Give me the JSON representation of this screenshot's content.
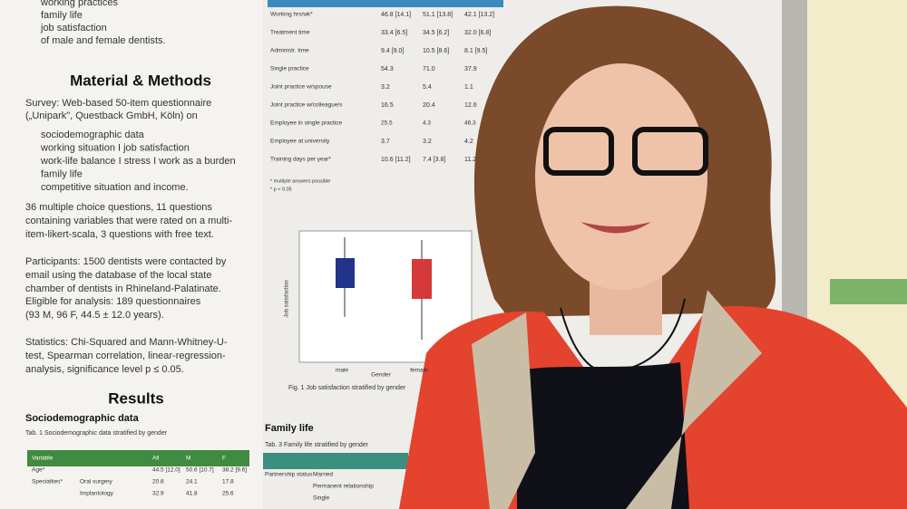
{
  "poster": {
    "intro_lines": [
      "working practices",
      "family life",
      "job satisfaction",
      "of male and female dentists."
    ],
    "methods_title": "Material & Methods",
    "survey_lines": [
      "Survey: Web-based 50-item questionnaire",
      "(„Unipark\", Questback GmbH, Köln) on"
    ],
    "bullets": [
      "sociodemographic data",
      "working situation I job satisfaction",
      "work-life balance I stress I work as a burden",
      "family life",
      "competitive situation and income."
    ],
    "questions_lines": [
      "36 multiple choice questions, 11 questions",
      "containing variables that were rated on a multi-",
      "item-likert-scala, 3 questions with free text."
    ],
    "participants_lines": [
      "Participants: 1500 dentists were contacted by",
      "email using the database of the local state",
      "chamber of dentists in Rhineland-Palatinate."
    ],
    "eligible_lines": [
      "Eligible for analysis: 189 questionnaires",
      "(93 M, 96 F, 44.5 ± 12.0 years)."
    ],
    "statistics_lines": [
      "Statistics: Chi-Squared and Mann-Whitney-U-",
      "test, Spearman correlation, linear-regression-",
      "analysis, significance level p ≤ 0.05."
    ],
    "results_title": "Results",
    "socio_title": "Sociodemographic data",
    "socio_caption": "Tab. 1 Sociodemographic data stratified by gender",
    "socio_rows": [
      [
        "Variable",
        "All",
        "M",
        "F"
      ],
      [
        "Age*",
        "44.5 [12.0]",
        "50.6 [10.7]",
        "38.2 [9.6]"
      ],
      [
        "Specialties*",
        "Oral surgery",
        "20.8",
        "24.1",
        "17.8"
      ],
      [
        "",
        "Implantology",
        "32.9",
        "41.8",
        "25.6"
      ]
    ],
    "work_rows": [
      [
        "Working hrs/wk*",
        "46.8 [14.1]",
        "51.1 [13.8]",
        "42.1 [13.2]"
      ],
      [
        "Treatment time",
        "33.4 [6.5]",
        "34.5 [6.2]",
        "32.0 [6.8]"
      ],
      [
        "Administr. time",
        "9.4 [9.0]",
        "10.5 [8.6]",
        "8.1 [9.5]"
      ],
      [
        "Single practice",
        "54.3",
        "71.0",
        "37.9"
      ],
      [
        "Joint practice w/spouse",
        "3.2",
        "5.4",
        "1.1"
      ],
      [
        "Joint practice w/colleague/s",
        "16.5",
        "20.4",
        "12.6"
      ],
      [
        "Employee in single practice",
        "25.5",
        "4.3",
        "46.3"
      ],
      [
        "Employee at university",
        "3.7",
        "3.2",
        "4.2"
      ],
      [
        "Training days per year*",
        "10.6 [11.2]",
        "7.4 [3.8]",
        "11.2"
      ]
    ],
    "work_notes": [
      "* multiple answers possible",
      "* p < 0.05"
    ],
    "fig_ylabel": "Job satisfaction",
    "fig_xcats": [
      "male",
      "female"
    ],
    "fig_xlabel": "Gender",
    "fig_caption": "Fig. 1 Job satisfaction stratified by gender",
    "family_title": "Family life",
    "family_caption": "Tab. 3 Family life stratified by gender",
    "family_rows": [
      [
        "Partnership status",
        "Married"
      ],
      [
        "",
        "Permanent relationship"
      ],
      [
        "",
        "Single"
      ]
    ]
  }
}
